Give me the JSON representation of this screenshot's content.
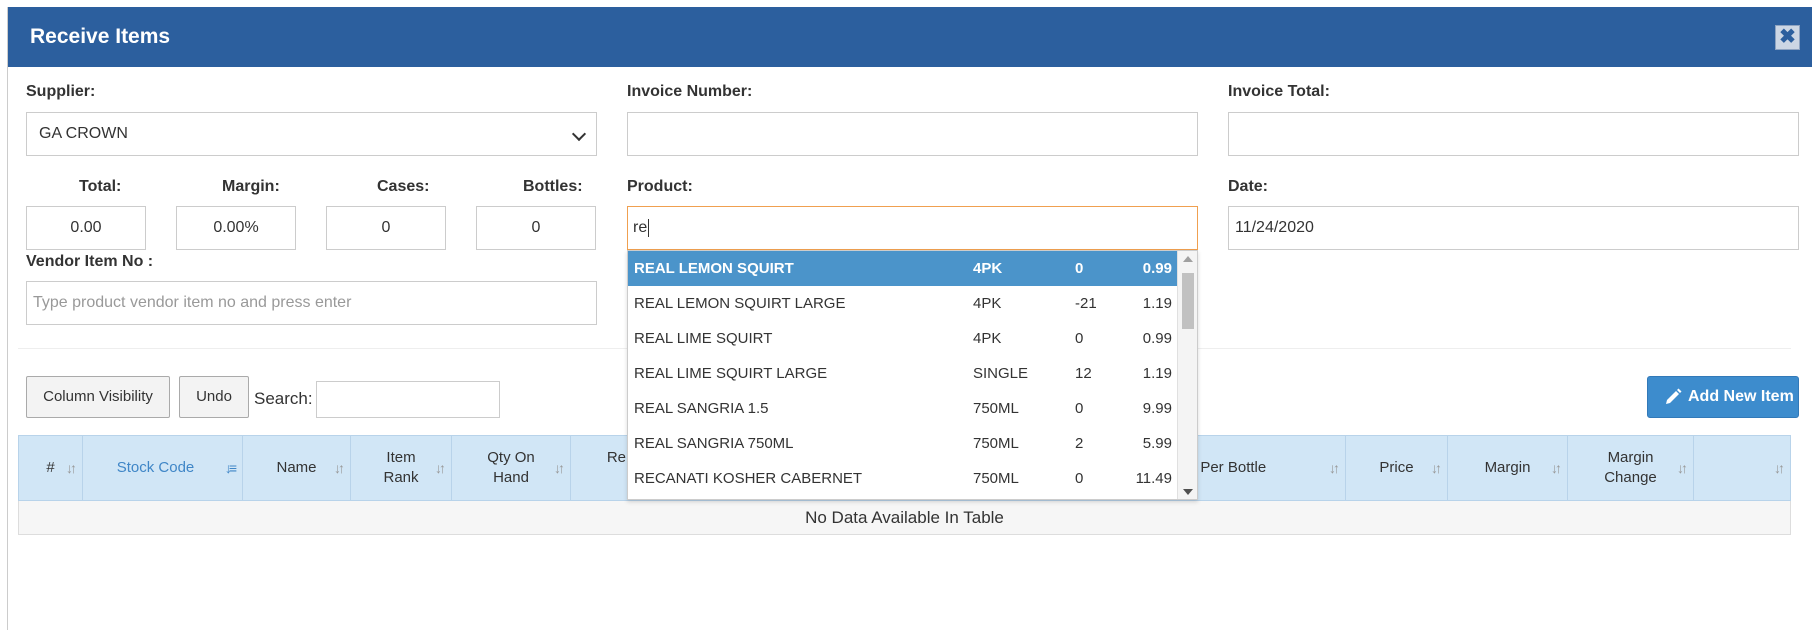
{
  "modal": {
    "title": "Receive Items",
    "close_label": "✖"
  },
  "supplier": {
    "label": "Supplier:",
    "value": "GA CROWN"
  },
  "invoice_number": {
    "label": "Invoice Number:",
    "value": ""
  },
  "invoice_total": {
    "label": "Invoice Total:",
    "value": ""
  },
  "totals": {
    "total_label": "Total:",
    "total_value": "0.00",
    "margin_label": "Margin:",
    "margin_value": "0.00%",
    "cases_label": "Cases:",
    "cases_value": "0",
    "bottles_label": "Bottles:",
    "bottles_value": "0"
  },
  "product": {
    "label": "Product:",
    "value": "re"
  },
  "date": {
    "label": "Date:",
    "value": "11/24/2020"
  },
  "vendor_item": {
    "label": "Vendor Item No :",
    "placeholder": "Type product vendor item no and press enter"
  },
  "toolbar": {
    "column_visibility": "Column Visibility",
    "undo": "Undo",
    "search_label": "Search:",
    "search_value": "",
    "add_new_item": "Add New Item"
  },
  "table": {
    "columns": [
      "#",
      "Stock Code",
      "Name",
      "Item Rank",
      "Qty On Hand",
      "Re",
      "t Per Bottle",
      "Price",
      "Margin",
      "Margin Change",
      ""
    ],
    "empty_text": "No Data Available In Table"
  },
  "autocomplete": [
    {
      "name": "REAL LEMON SQUIRT",
      "size": "4PK",
      "qty": "0",
      "price": "0.99",
      "selected": true
    },
    {
      "name": "REAL LEMON SQUIRT LARGE",
      "size": "4PK",
      "qty": "-21",
      "price": "1.19"
    },
    {
      "name": "REAL LIME SQUIRT",
      "size": "4PK",
      "qty": "0",
      "price": "0.99"
    },
    {
      "name": "REAL LIME SQUIRT LARGE",
      "size": "SINGLE",
      "qty": "12",
      "price": "1.19"
    },
    {
      "name": "REAL SANGRIA 1.5",
      "size": "750ML",
      "qty": "0",
      "price": "9.99"
    },
    {
      "name": "REAL SANGRIA 750ML",
      "size": "750ML",
      "qty": "2",
      "price": "5.99"
    },
    {
      "name": "RECANATI KOSHER CABERNET",
      "size": "750ML",
      "qty": "0",
      "price": "11.49"
    }
  ],
  "colors": {
    "header": "#2c5f9e",
    "selected_row": "#4b94ca",
    "table_header": "#d1e6f6",
    "accent_blue": "#3d8ccd",
    "focus_border": "#f0a050"
  }
}
